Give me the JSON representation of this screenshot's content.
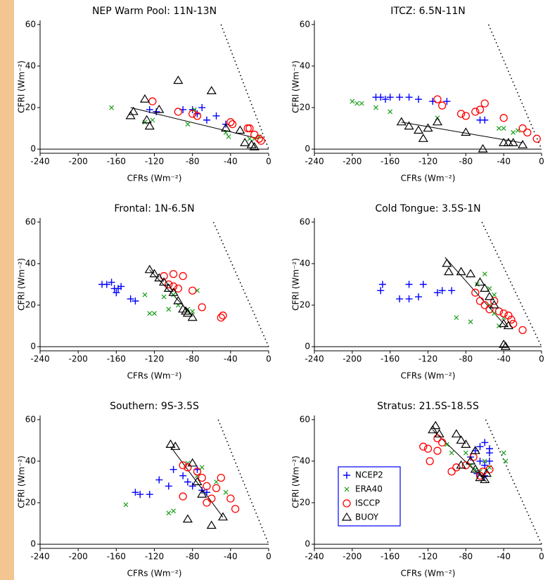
{
  "chart_data": [
    {
      "type": "scatter",
      "title": "NEP Warm Pool: 11N-13N",
      "xlabel": "CFRs (Wm⁻²)",
      "ylabel": "CFRl (Wm⁻²)",
      "xlim": [
        -240,
        0
      ],
      "ylim": [
        -2,
        62
      ],
      "xticks": [
        -240,
        -200,
        -160,
        -120,
        -80,
        -40,
        0
      ],
      "yticks": [
        0,
        20,
        40,
        60
      ],
      "series": [
        {
          "color": "#0000ff",
          "marker": "plus",
          "x": [
            -125,
            -118,
            -90,
            -80,
            -70,
            -65,
            -55,
            -45,
            -75
          ],
          "values": [
            19,
            18,
            19,
            19,
            20,
            14,
            16,
            12,
            17
          ]
        },
        {
          "color": "#1a9e1a",
          "marker": "cross",
          "x": [
            -165,
            -130,
            -122,
            -85,
            -78,
            -45,
            -42,
            -20,
            -15,
            -10
          ],
          "values": [
            20,
            13,
            14,
            12,
            19,
            8,
            6,
            5,
            5,
            6
          ]
        },
        {
          "color": "#ff0000",
          "marker": "circle",
          "x": [
            -122,
            -95,
            -80,
            -75,
            -40,
            -38,
            -22,
            -20,
            -15,
            -10,
            -8
          ],
          "values": [
            23,
            18,
            17,
            16,
            13,
            12,
            10,
            10,
            7,
            5,
            4
          ]
        },
        {
          "color": "#000000",
          "marker": "triangle",
          "x": [
            -145,
            -142,
            -130,
            -128,
            -125,
            -115,
            -95,
            -60,
            -45,
            -30,
            -25,
            -18,
            -15
          ],
          "values": [
            16,
            18,
            24,
            14,
            11,
            19,
            33,
            28,
            10,
            9,
            3,
            2,
            1
          ]
        }
      ],
      "lines": [
        {
          "style": "solid",
          "x": [
            -145,
            -10
          ],
          "values": [
            20,
            5
          ]
        },
        {
          "style": "dotted",
          "x": [
            -50,
            0
          ],
          "values": [
            60,
            0
          ]
        }
      ]
    },
    {
      "type": "scatter",
      "title": "ITCZ: 6.5N-11N",
      "xlabel": "CFRs (Wm⁻²)",
      "ylabel": "CFRl (Wm⁻²)",
      "xlim": [
        -240,
        0
      ],
      "ylim": [
        -2,
        62
      ],
      "xticks": [
        -240,
        -200,
        -160,
        -120,
        -80,
        -40,
        0
      ],
      "yticks": [
        0,
        20,
        40,
        60
      ],
      "series": [
        {
          "color": "#0000ff",
          "marker": "plus",
          "x": [
            -175,
            -170,
            -165,
            -160,
            -150,
            -140,
            -130,
            -115,
            -100,
            -65,
            -60
          ],
          "values": [
            25,
            25,
            24,
            25,
            25,
            25,
            24,
            23,
            23,
            14,
            14
          ]
        },
        {
          "color": "#1a9e1a",
          "marker": "cross",
          "x": [
            -200,
            -195,
            -190,
            -175,
            -160,
            -110,
            -45,
            -40,
            -30,
            -25
          ],
          "values": [
            23,
            22,
            22,
            20,
            18,
            15,
            10,
            10,
            8,
            9
          ]
        },
        {
          "color": "#ff0000",
          "marker": "circle",
          "x": [
            -110,
            -105,
            -85,
            -80,
            -70,
            -65,
            -60,
            -40,
            -20,
            -15,
            -5
          ],
          "values": [
            24,
            21,
            17,
            16,
            18,
            19,
            22,
            15,
            10,
            8,
            5
          ]
        },
        {
          "color": "#000000",
          "marker": "triangle",
          "x": [
            -148,
            -140,
            -130,
            -125,
            -120,
            -110,
            -80,
            -62,
            -40,
            -35,
            -30,
            -20
          ],
          "values": [
            13,
            11,
            9,
            5,
            10,
            13,
            8,
            0,
            3,
            3,
            3,
            2
          ]
        }
      ],
      "lines": [
        {
          "style": "solid",
          "x": [
            -148,
            -20
          ],
          "values": [
            13,
            3
          ]
        },
        {
          "style": "dotted",
          "x": [
            -56,
            0
          ],
          "values": [
            60,
            0
          ]
        }
      ]
    },
    {
      "type": "scatter",
      "title": "Frontal: 1N-6.5N",
      "xlabel": "CFRs (Wm⁻²)",
      "ylabel": "CFRl (Wm⁻²)",
      "xlim": [
        -240,
        0
      ],
      "ylim": [
        -2,
        62
      ],
      "xticks": [
        -240,
        -200,
        -160,
        -120,
        -80,
        -40,
        0
      ],
      "yticks": [
        0,
        20,
        40,
        60
      ],
      "series": [
        {
          "color": "#0000ff",
          "marker": "plus",
          "x": [
            -175,
            -170,
            -165,
            -162,
            -160,
            -158,
            -155,
            -145,
            -140
          ],
          "values": [
            30,
            30,
            31,
            28,
            26,
            28,
            29,
            23,
            22
          ]
        },
        {
          "color": "#1a9e1a",
          "marker": "cross",
          "x": [
            -130,
            -125,
            -120,
            -105,
            -100,
            -95,
            -85,
            -80,
            -75,
            -110
          ],
          "values": [
            25,
            16,
            16,
            18,
            25,
            20,
            18,
            17,
            27,
            24
          ]
        },
        {
          "color": "#ff0000",
          "marker": "circle",
          "x": [
            -110,
            -100,
            -90,
            -105,
            -100,
            -95,
            -80,
            -70,
            -50,
            -48
          ],
          "values": [
            34,
            35,
            34,
            30,
            29,
            28,
            27,
            19,
            14,
            15
          ]
        },
        {
          "color": "#000000",
          "marker": "triangle",
          "x": [
            -125,
            -120,
            -115,
            -110,
            -105,
            -100,
            -95,
            -90,
            -87,
            -85,
            -80
          ],
          "values": [
            37,
            35,
            33,
            31,
            28,
            26,
            22,
            18,
            17,
            16,
            14
          ]
        }
      ],
      "lines": [
        {
          "style": "solid",
          "x": [
            -125,
            -80
          ],
          "values": [
            37,
            15
          ]
        },
        {
          "style": "dotted",
          "x": [
            -58,
            0
          ],
          "values": [
            60,
            0
          ]
        }
      ]
    },
    {
      "type": "scatter",
      "title": "Cold Tongue: 3.5S-1N",
      "xlabel": "CFRs (Wm⁻²)",
      "ylabel": "CFRl (Wm⁻²)",
      "xlim": [
        -240,
        0
      ],
      "ylim": [
        -2,
        62
      ],
      "xticks": [
        -240,
        -200,
        -160,
        -120,
        -80,
        -40,
        0
      ],
      "yticks": [
        0,
        20,
        40,
        60
      ],
      "series": [
        {
          "color": "#0000ff",
          "marker": "plus",
          "x": [
            -170,
            -168,
            -150,
            -140,
            -140,
            -130,
            -125,
            -110,
            -105,
            -95
          ],
          "values": [
            27,
            30,
            23,
            23,
            30,
            24,
            30,
            26,
            27,
            27
          ]
        },
        {
          "color": "#1a9e1a",
          "marker": "cross",
          "x": [
            -90,
            -75,
            -68,
            -60,
            -55,
            -55,
            -50,
            -45,
            -40,
            -50
          ],
          "values": [
            14,
            12,
            30,
            35,
            28,
            20,
            16,
            10,
            14,
            25
          ]
        },
        {
          "color": "#ff0000",
          "marker": "circle",
          "x": [
            -70,
            -65,
            -60,
            -55,
            -50,
            -45,
            -40,
            -35,
            -32,
            -30,
            -20
          ],
          "values": [
            26,
            22,
            20,
            18,
            22,
            17,
            16,
            15,
            13,
            11,
            8
          ]
        },
        {
          "color": "#000000",
          "marker": "triangle",
          "x": [
            -100,
            -98,
            -85,
            -75,
            -65,
            -60,
            -55,
            -50,
            -40,
            -35,
            -40,
            -38
          ],
          "values": [
            40,
            36,
            36,
            35,
            31,
            28,
            24,
            20,
            11,
            10,
            1,
            0
          ]
        }
      ],
      "lines": [
        {
          "style": "solid",
          "x": [
            -102,
            -38
          ],
          "values": [
            43,
            10
          ]
        },
        {
          "style": "dotted",
          "x": [
            -63,
            0
          ],
          "values": [
            60,
            0
          ]
        }
      ]
    },
    {
      "type": "scatter",
      "title": "Southern: 9S-3.5S",
      "xlabel": "CFRs (Wm⁻²)",
      "ylabel": "CFRl (Wm⁻²)",
      "xlim": [
        -240,
        0
      ],
      "ylim": [
        -2,
        62
      ],
      "xticks": [
        -240,
        -200,
        -160,
        -120,
        -80,
        -40,
        0
      ],
      "yticks": [
        0,
        20,
        40,
        60
      ],
      "series": [
        {
          "color": "#0000ff",
          "marker": "plus",
          "x": [
            -140,
            -135,
            -125,
            -115,
            -105,
            -100,
            -90,
            -85,
            -80,
            -75,
            -70,
            -65
          ],
          "values": [
            25,
            24,
            24,
            31,
            28,
            36,
            33,
            30,
            28,
            36,
            26,
            25
          ]
        },
        {
          "color": "#1a9e1a",
          "marker": "cross",
          "x": [
            -150,
            -105,
            -100,
            -85,
            -75,
            -70,
            -55,
            -45
          ],
          "values": [
            19,
            15,
            16,
            39,
            33,
            37,
            30,
            25
          ]
        },
        {
          "color": "#ff0000",
          "marker": "circle",
          "x": [
            -90,
            -85,
            -90,
            -75,
            -70,
            -65,
            -60,
            -55,
            -50,
            -40,
            -35,
            -65
          ],
          "values": [
            38,
            37,
            23,
            35,
            32,
            28,
            22,
            27,
            32,
            22,
            17,
            20
          ]
        },
        {
          "color": "#000000",
          "marker": "triangle",
          "x": [
            -103,
            -98,
            -80,
            -75,
            -70,
            -85,
            -60,
            -48
          ],
          "values": [
            48,
            47,
            39,
            30,
            24,
            12,
            9,
            13
          ]
        }
      ],
      "lines": [
        {
          "style": "solid",
          "x": [
            -103,
            -48
          ],
          "values": [
            47,
            13
          ]
        },
        {
          "style": "dotted",
          "x": [
            -53,
            0
          ],
          "values": [
            60,
            0
          ]
        }
      ]
    },
    {
      "type": "scatter",
      "title": "Stratus: 21.5S-18.5S",
      "xlabel": "CFRs (Wm⁻²)",
      "ylabel": "CFRl (Wm⁻²)",
      "xlim": [
        -240,
        0
      ],
      "ylim": [
        -2,
        62
      ],
      "xticks": [
        -240,
        -200,
        -160,
        -120,
        -80,
        -40,
        0
      ],
      "yticks": [
        0,
        20,
        40,
        60
      ],
      "legend": "lower left",
      "series": [
        {
          "name": "NCEP2",
          "color": "#0000ff",
          "marker": "plus",
          "x": [
            -75,
            -70,
            -65,
            -60,
            -55,
            -65,
            -60,
            -55,
            -68,
            -60,
            -55
          ],
          "values": [
            42,
            45,
            47,
            49,
            46,
            40,
            38,
            44,
            34,
            33,
            40
          ]
        },
        {
          "name": "ERA40",
          "color": "#1a9e1a",
          "marker": "cross",
          "x": [
            -100,
            -95,
            -80,
            -75,
            -70,
            -65,
            -60,
            -40,
            -38,
            -55
          ],
          "values": [
            48,
            44,
            44,
            38,
            36,
            35,
            40,
            44,
            40,
            37
          ]
        },
        {
          "name": "ISCCP",
          "color": "#ff0000",
          "marker": "circle",
          "x": [
            -125,
            -120,
            -118,
            -110,
            -105,
            -95,
            -90,
            -80,
            -72,
            -65,
            -62,
            -55,
            -110
          ],
          "values": [
            47,
            46,
            40,
            51,
            49,
            35,
            37,
            38,
            42,
            33,
            35,
            36,
            45
          ]
        },
        {
          "name": "BUOY",
          "color": "#000000",
          "marker": "triangle",
          "x": [
            -115,
            -112,
            -108,
            -90,
            -85,
            -80,
            -85,
            -75,
            -70,
            -70,
            -65,
            -60,
            -58
          ],
          "values": [
            55,
            57,
            53,
            53,
            50,
            48,
            38,
            40,
            45,
            36,
            32,
            31,
            34
          ]
        }
      ],
      "lines": [
        {
          "style": "solid",
          "x": [
            -115,
            -58
          ],
          "values": [
            55,
            30
          ]
        },
        {
          "style": "dotted",
          "x": [
            -59,
            0
          ],
          "values": [
            60,
            0
          ]
        }
      ]
    }
  ]
}
